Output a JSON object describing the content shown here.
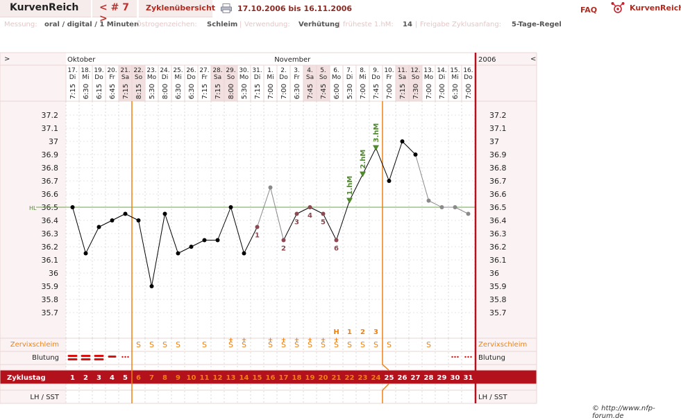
{
  "header": {
    "brand": "KurvenReich",
    "cycle_nav": "< # 7 >",
    "overview_link": "Zyklenübersicht",
    "date_range": "17.10.2006 bis 16.11.2006",
    "faq": "FAQ",
    "logo_text": "KurvenReich"
  },
  "info": {
    "measure_label": "Messung:",
    "measure_value": "oral / digital / 1 Minuten",
    "estrogen_label": "Östrogenzeichen:",
    "estrogen_value": "Schleim",
    "usage_label": "Verwendung:",
    "usage_value": "Verhütung",
    "earliest_label": "früheste 1.hM:",
    "earliest_value": "14",
    "release_label": "Freigabe Zyklusanfang:",
    "release_value": "5-Tage-Regel"
  },
  "nav": {
    "left": ">",
    "right": "<",
    "year": "2006"
  },
  "copyright": "© http://www.nfp-forum.de",
  "chart_data": {
    "type": "line",
    "months": [
      {
        "label": "Oktober",
        "start_index": 0
      },
      {
        "label": "November",
        "start_index": 15
      }
    ],
    "dates": [
      "17.",
      "18.",
      "19.",
      "20.",
      "21.",
      "22.",
      "23.",
      "24.",
      "25.",
      "26.",
      "27.",
      "28.",
      "29.",
      "30.",
      "31.",
      "1.",
      "2.",
      "3.",
      "4.",
      "5.",
      "6.",
      "7.",
      "8.",
      "9.",
      "10.",
      "11.",
      "12.",
      "13.",
      "14.",
      "15.",
      "16."
    ],
    "weekdays": [
      "Di",
      "Mi",
      "Do",
      "Fr",
      "Sa",
      "So",
      "Mo",
      "Di",
      "Mi",
      "Do",
      "Fr",
      "Sa",
      "So",
      "Mo",
      "Di",
      "Mi",
      "Do",
      "Fr",
      "Sa",
      "So",
      "Mo",
      "Di",
      "Mi",
      "Do",
      "Fr",
      "Sa",
      "So",
      "Mo",
      "Di",
      "Mi",
      "Do"
    ],
    "times": [
      "7:15",
      "6:30",
      "6:15",
      "6:45",
      "7:15",
      "8:15",
      "5:30",
      "8:00",
      "6:30",
      "6:30",
      "7:15",
      "7:15",
      "8:00",
      "5:30",
      "7:15",
      "7:00",
      "7:00",
      "6:30",
      "7:45",
      "7:45",
      "6:00",
      "5:30",
      "7:00",
      "7:45",
      "7:00",
      "7:15",
      "7:30",
      "7:00",
      "7:00",
      "6:30",
      "7:00"
    ],
    "weekend_indices": [
      4,
      5,
      11,
      12,
      18,
      19,
      25,
      26
    ],
    "cycle_days": [
      "1",
      "2",
      "3",
      "4",
      "5",
      "6",
      "7",
      "8",
      "9",
      "10",
      "11",
      "12",
      "13",
      "14",
      "15",
      "16",
      "17",
      "18",
      "19",
      "20",
      "21",
      "22",
      "23",
      "24",
      "25",
      "26",
      "27",
      "28",
      "29",
      "30",
      "31"
    ],
    "temperatures": [
      36.5,
      36.15,
      36.35,
      36.4,
      36.45,
      36.4,
      35.9,
      36.45,
      36.15,
      36.2,
      36.25,
      36.25,
      36.5,
      36.15,
      36.35,
      36.65,
      36.25,
      36.45,
      36.5,
      36.45,
      36.25,
      36.55,
      36.75,
      36.95,
      36.7,
      37.0,
      36.9,
      36.55,
      36.5,
      36.5,
      36.45
    ],
    "excluded_indices": [
      15,
      27,
      28,
      29,
      30
    ],
    "low_temp_numbers": [
      {
        "index": 14,
        "label": "1"
      },
      {
        "index": 16,
        "label": "2"
      },
      {
        "index": 17,
        "label": "3"
      },
      {
        "index": 18,
        "label": "4"
      },
      {
        "index": 19,
        "label": "5"
      },
      {
        "index": 20,
        "label": "6"
      }
    ],
    "high_measurements": [
      {
        "index": 21,
        "label": "1.hM"
      },
      {
        "index": 22,
        "label": "2.hM"
      },
      {
        "index": 23,
        "label": "3.hM"
      }
    ],
    "coverline": {
      "value": 36.5,
      "label": "HL"
    },
    "ylim": [
      35.65,
      37.25
    ],
    "y_ticks": [
      37.2,
      37.1,
      37,
      36.9,
      36.8,
      36.7,
      36.6,
      36.5,
      36.4,
      36.3,
      36.2,
      36.1,
      36,
      35.9,
      35.8,
      35.7
    ],
    "peak_markers": [
      {
        "index": 20,
        "label": "H"
      },
      {
        "index": 21,
        "label": "1"
      },
      {
        "index": 22,
        "label": "2"
      },
      {
        "index": 23,
        "label": "3"
      }
    ],
    "mucus_label": "Zervixschleim",
    "mucus": [
      "",
      "",
      "",
      "",
      "",
      "S",
      "S",
      "S",
      "S",
      "",
      "S",
      "",
      "S+",
      "S+",
      "",
      "S+",
      "S+",
      "S+",
      "S+",
      "S+",
      "S+",
      "S",
      "S",
      "S",
      "S",
      "",
      "",
      "S",
      "",
      "",
      ""
    ],
    "bleeding_label": "Blutung",
    "bleeding": [
      "heavy",
      "heavy",
      "heavy",
      "medium",
      "light",
      "",
      "",
      "",
      "",
      "",
      "",
      "",
      "",
      "",
      "",
      "",
      "",
      "",
      "",
      "",
      "",
      "",
      "",
      "",
      "",
      "",
      "",
      "",
      "",
      "light",
      "light"
    ],
    "cycle_label": "Zyklustag",
    "lh_label": "LH / SST",
    "separator_indices": [
      5,
      24
    ],
    "colors": {
      "accent": "#b3121d",
      "orange": "#f08010",
      "line_black": "#000000",
      "line_grey": "#8a8a8a",
      "mark_pink": "#8a4a52",
      "mark_green": "#4f8a2c",
      "coverline": "#6aa04a"
    }
  }
}
